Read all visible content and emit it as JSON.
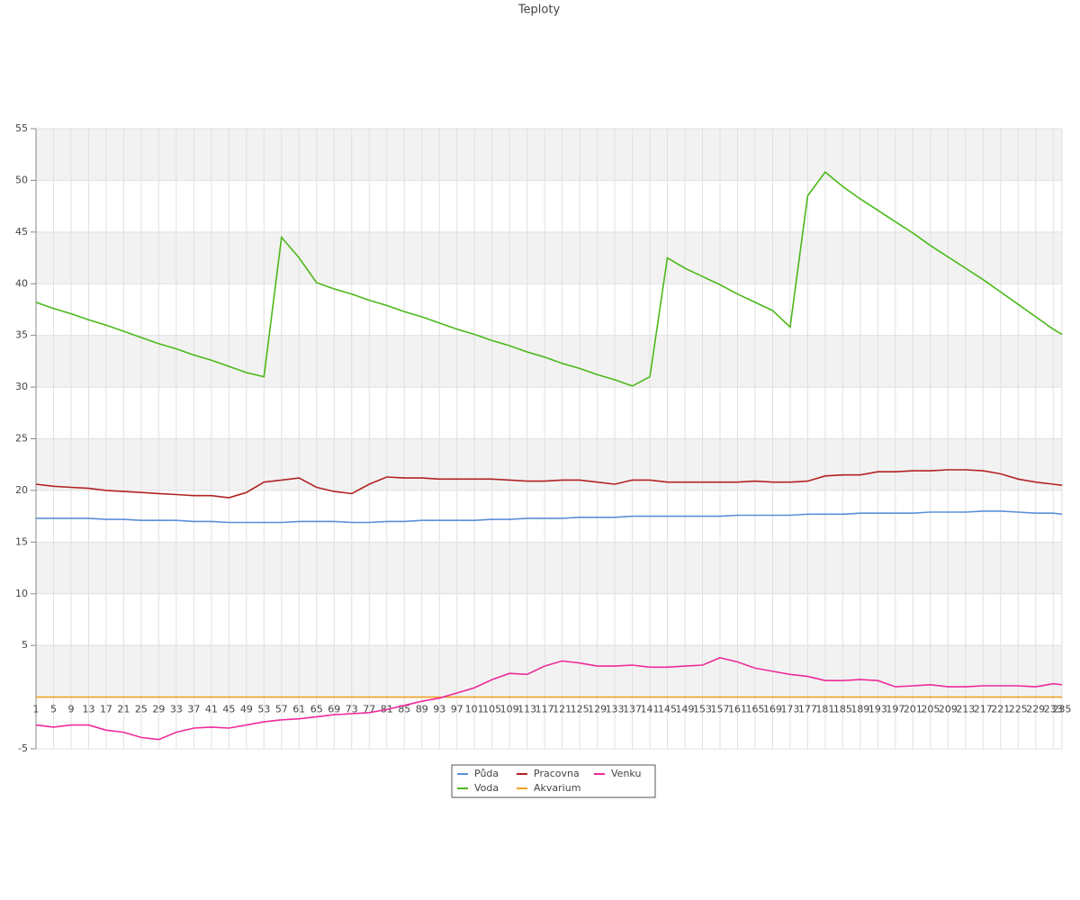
{
  "chart_data": {
    "type": "line",
    "title": "Teploty",
    "x": [
      1,
      5,
      9,
      13,
      17,
      21,
      25,
      29,
      33,
      37,
      41,
      45,
      49,
      53,
      57,
      61,
      65,
      69,
      73,
      77,
      81,
      85,
      89,
      93,
      97,
      101,
      105,
      109,
      113,
      117,
      121,
      125,
      129,
      133,
      137,
      141,
      145,
      149,
      153,
      157,
      161,
      165,
      169,
      173,
      177,
      181,
      185,
      189,
      193,
      197,
      201,
      205,
      209,
      213,
      217,
      221,
      225,
      229,
      233,
      235
    ],
    "xlim": [
      1,
      235
    ],
    "ylim": [
      -5,
      55
    ],
    "yticks": [
      -5,
      5,
      10,
      15,
      20,
      25,
      30,
      35,
      40,
      45,
      50,
      55
    ],
    "grid": true,
    "legend": "bottom",
    "series": [
      {
        "name": "Půda",
        "color": "#5b8fd9",
        "values": [
          17.3,
          17.3,
          17.3,
          17.3,
          17.2,
          17.2,
          17.1,
          17.1,
          17.1,
          17.0,
          17.0,
          16.9,
          16.9,
          16.9,
          16.9,
          17.0,
          17.0,
          17.0,
          16.9,
          16.9,
          17.0,
          17.0,
          17.1,
          17.1,
          17.1,
          17.1,
          17.2,
          17.2,
          17.3,
          17.3,
          17.3,
          17.4,
          17.4,
          17.4,
          17.5,
          17.5,
          17.5,
          17.5,
          17.5,
          17.5,
          17.6,
          17.6,
          17.6,
          17.6,
          17.7,
          17.7,
          17.7,
          17.8,
          17.8,
          17.8,
          17.8,
          17.9,
          17.9,
          17.9,
          18.0,
          18.0,
          17.9,
          17.8,
          17.8,
          17.7
        ]
      },
      {
        "name": "Voda",
        "color": "#4cb81a",
        "values": [
          38.2,
          37.6,
          37.1,
          36.5,
          36.0,
          35.4,
          34.8,
          34.2,
          33.7,
          33.1,
          32.6,
          32.0,
          31.4,
          31.0,
          44.5,
          42.5,
          40.1,
          39.5,
          39.0,
          38.4,
          37.9,
          37.3,
          36.8,
          36.2,
          35.6,
          35.1,
          34.5,
          34.0,
          33.4,
          32.9,
          32.3,
          31.8,
          31.2,
          30.7,
          30.1,
          31.0,
          42.5,
          41.5,
          40.7,
          39.9,
          39.0,
          38.2,
          37.4,
          35.8,
          48.5,
          50.8,
          49.4,
          48.2,
          47.1,
          46.0,
          44.9,
          43.7,
          42.6,
          41.5,
          40.4,
          39.2,
          38.0,
          36.8,
          35.6,
          35.1
        ]
      },
      {
        "name": "Pracovna",
        "color": "#b22222",
        "values": [
          20.6,
          20.4,
          20.3,
          20.2,
          20.0,
          19.9,
          19.8,
          19.7,
          19.6,
          19.5,
          19.5,
          19.3,
          19.8,
          20.8,
          21.0,
          21.2,
          20.3,
          19.9,
          19.7,
          20.6,
          21.3,
          21.2,
          21.2,
          21.1,
          21.1,
          21.1,
          21.1,
          21.0,
          20.9,
          20.9,
          21.0,
          21.0,
          20.8,
          20.6,
          21.0,
          21.0,
          20.8,
          20.8,
          20.8,
          20.8,
          20.8,
          20.9,
          20.8,
          20.8,
          20.9,
          21.4,
          21.5,
          21.5,
          21.8,
          21.8,
          21.9,
          21.9,
          22.0,
          22.0,
          21.9,
          21.6,
          21.1,
          20.8,
          20.6,
          20.5
        ]
      },
      {
        "name": "Akvarium",
        "color": "#f0a020",
        "values": [
          0,
          0,
          0,
          0,
          0,
          0,
          0,
          0,
          0,
          0,
          0,
          0,
          0,
          0,
          0,
          0,
          0,
          0,
          0,
          0,
          0,
          0,
          0,
          0,
          0,
          0,
          0,
          0,
          0,
          0,
          0,
          0,
          0,
          0,
          0,
          0,
          0,
          0,
          0,
          0,
          0,
          0,
          0,
          0,
          0,
          0,
          0,
          0,
          0,
          0,
          0,
          0,
          0,
          0,
          0,
          0,
          0,
          0,
          0,
          0
        ]
      },
      {
        "name": "Venku",
        "color": "#ee2a9c",
        "values": [
          -2.7,
          -2.9,
          -2.7,
          -2.7,
          -3.2,
          -3.4,
          -3.9,
          -4.1,
          -3.4,
          -3.0,
          -2.9,
          -3.0,
          -2.7,
          -2.4,
          -2.2,
          -2.1,
          -1.9,
          -1.7,
          -1.6,
          -1.5,
          -1.2,
          -0.8,
          -0.4,
          -0.1,
          0.4,
          0.9,
          1.7,
          2.3,
          2.2,
          3.0,
          3.5,
          3.3,
          3.0,
          3.0,
          3.1,
          2.9,
          2.9,
          3.0,
          3.1,
          3.8,
          3.4,
          2.8,
          2.5,
          2.2,
          2.0,
          1.6,
          1.6,
          1.7,
          1.6,
          1.0,
          1.1,
          1.2,
          1.0,
          1.0,
          1.1,
          1.1,
          1.1,
          1.0,
          1.3,
          1.2
        ]
      }
    ]
  }
}
